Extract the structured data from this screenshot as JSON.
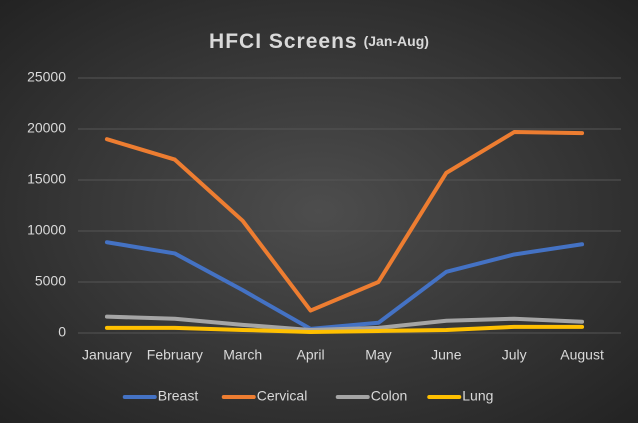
{
  "chart_data": {
    "type": "line",
    "title": "HFCI Screens",
    "subtitle": "(Jan-Aug)",
    "categories": [
      "January",
      "February",
      "March",
      "April",
      "May",
      "June",
      "July",
      "August"
    ],
    "series": [
      {
        "name": "Breast",
        "color": "#4472c4",
        "values": [
          8900,
          7800,
          4200,
          400,
          1000,
          6000,
          7700,
          8700
        ]
      },
      {
        "name": "Cervical",
        "color": "#ed7d31",
        "values": [
          19000,
          17000,
          11000,
          2200,
          5000,
          15700,
          19700,
          19600
        ]
      },
      {
        "name": "Colon",
        "color": "#a5a5a5",
        "values": [
          1600,
          1400,
          800,
          300,
          500,
          1200,
          1400,
          1100
        ]
      },
      {
        "name": "Lung",
        "color": "#ffc000",
        "values": [
          500,
          500,
          300,
          100,
          200,
          300,
          600,
          600
        ]
      }
    ],
    "ylim": [
      0,
      25000
    ],
    "yticks": [
      0,
      5000,
      10000,
      15000,
      20000,
      25000
    ],
    "grid": true,
    "legend": "bottom"
  }
}
